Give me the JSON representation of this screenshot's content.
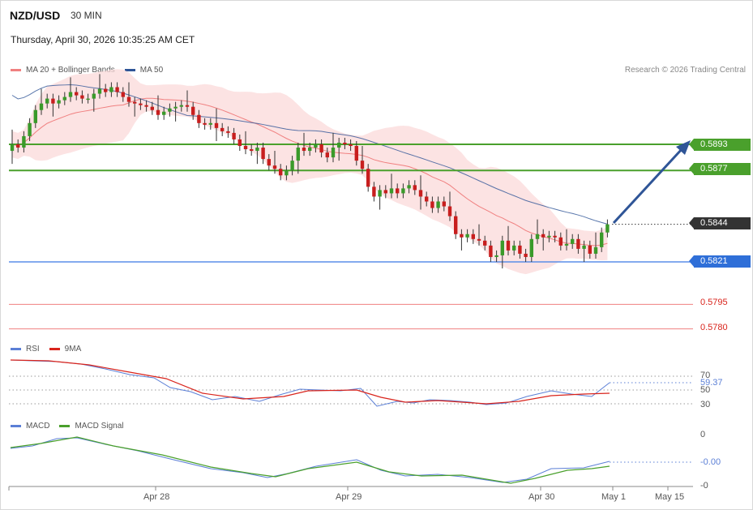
{
  "header": {
    "pair": "NZD/USD",
    "timeframe": "30 MIN",
    "datetime": "Thursday, April 30, 2026 10:35:25 AM CET",
    "credit": "Research © 2026 Trading Central"
  },
  "legends": {
    "main": [
      {
        "label": "MA 20 + Bollinger Bands",
        "color": "#f08080"
      },
      {
        "label": "MA 50",
        "color": "#2f5597"
      }
    ],
    "rsi": [
      {
        "label": "RSI",
        "color": "#5b7fd6"
      },
      {
        "label": "9MA",
        "color": "#d9241c"
      }
    ],
    "macd": [
      {
        "label": "MACD",
        "color": "#5b7fd6"
      },
      {
        "label": "MACD Signal",
        "color": "#4aa02c"
      }
    ]
  },
  "price_levels": {
    "resistance_2": "0.5893",
    "resistance_1": "0.5877",
    "current": "0.5844",
    "support_1": "0.5821",
    "support_2": "0.5795",
    "support_3": "0.5780"
  },
  "rsi_panel": {
    "levels": [
      "70",
      "50",
      "30"
    ],
    "current": "59.37"
  },
  "macd_panel": {
    "zero": "0",
    "current": "-0.00",
    "bottom": "-0"
  },
  "x_axis": {
    "labels": [
      "Apr 28",
      "Apr 29",
      "Apr 30",
      "May 1",
      "May 15"
    ]
  },
  "chart_data": {
    "type": "candlestick",
    "title": "NZD/USD",
    "x_ticks": [
      "Apr 28",
      "Apr 29",
      "Apr 30",
      "May 1",
      "May 15"
    ],
    "close": [
      0.5893,
      0.5891,
      0.5898,
      0.5906,
      0.5914,
      0.5918,
      0.5921,
      0.5918,
      0.592,
      0.5922,
      0.5925,
      0.5923,
      0.5921,
      0.5921,
      0.5924,
      0.5927,
      0.5925,
      0.5928,
      0.5925,
      0.5922,
      0.5919,
      0.5918,
      0.5917,
      0.5916,
      0.5914,
      0.5911,
      0.5913,
      0.5915,
      0.5916,
      0.5917,
      0.5916,
      0.5911,
      0.5906,
      0.5905,
      0.5906,
      0.5903,
      0.5901,
      0.59,
      0.5896,
      0.5892,
      0.589,
      0.5889,
      0.5891,
      0.5884,
      0.588,
      0.5878,
      0.5874,
      0.5877,
      0.5883,
      0.5891,
      0.5889,
      0.5891,
      0.5893,
      0.5888,
      0.5885,
      0.5891,
      0.5894,
      0.5893,
      0.5892,
      0.5883,
      0.5878,
      0.5867,
      0.5861,
      0.5865,
      0.5863,
      0.5866,
      0.5863,
      0.5866,
      0.5868,
      0.5865,
      0.5861,
      0.5858,
      0.5854,
      0.5858,
      0.5855,
      0.5849,
      0.5838,
      0.5836,
      0.5838,
      0.5835,
      0.5834,
      0.5831,
      0.5824,
      0.5825,
      0.5834,
      0.5828,
      0.5831,
      0.5826,
      0.5824,
      0.5835,
      0.5838,
      0.5836,
      0.5837,
      0.5836,
      0.5831,
      0.5832,
      0.5835,
      0.5829,
      0.5831,
      0.5826,
      0.583,
      0.5839,
      0.5844
    ],
    "ma20_bollinger": "on",
    "ma50": "on",
    "levels": [
      0.5893,
      0.5877,
      0.5844,
      0.5821,
      0.5795,
      0.578
    ],
    "rsi": {
      "levels": [
        70,
        50,
        30
      ],
      "last": 59.37
    },
    "macd": {
      "last": -0.0
    }
  }
}
